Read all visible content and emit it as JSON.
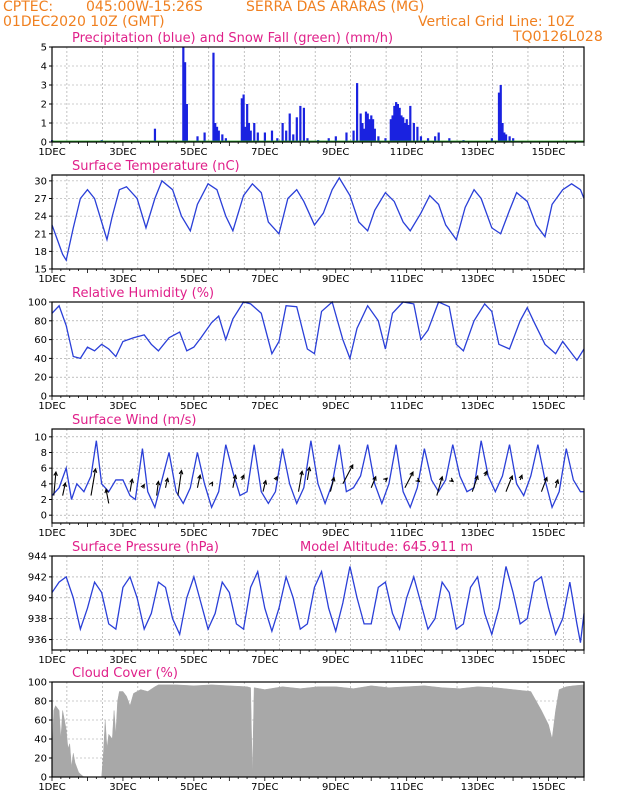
{
  "header": {
    "source": "CPTEC:",
    "coords": "045:00W-15:26S",
    "station": "SERRA DAS ARARAS (MG)",
    "run": "01DEC2020 10Z (GMT)",
    "grid_note": "Vertical Grid Line: 10Z",
    "code": "TQ0126L028"
  },
  "colors": {
    "header": "#f08020",
    "title": "#e0208a",
    "series": "#2a3fd8",
    "snow": "#20a020",
    "cloud": "#a8a8a8",
    "grid": "#9a9a9a"
  },
  "x_ticks": [
    "1DEC",
    "3DEC",
    "5DEC",
    "7DEC",
    "9DEC",
    "11DEC",
    "13DEC",
    "15DEC"
  ],
  "chart_data": [
    {
      "id": "precip",
      "type": "bar",
      "title": "Precipitation (blue) and Snow Fall (green) (mm/h)",
      "ylim": [
        0,
        5
      ],
      "yticks": [
        "0",
        "1",
        "2",
        "3",
        "4",
        "5"
      ],
      "series": [
        {
          "name": "Precipitation",
          "color": "#1a22e0",
          "x_day": [
            1.0,
            2.4,
            3.9,
            4.7,
            4.75,
            4.8,
            5.1,
            5.3,
            5.55,
            5.6,
            5.65,
            5.7,
            5.8,
            5.9,
            6.35,
            6.4,
            6.45,
            6.5,
            6.55,
            6.6,
            6.7,
            6.8,
            7.0,
            7.2,
            7.35,
            7.5,
            7.6,
            7.7,
            7.8,
            7.9,
            8.0,
            8.1,
            8.2,
            8.5,
            8.8,
            9.0,
            9.3,
            9.5,
            9.6,
            9.7,
            9.75,
            9.8,
            9.85,
            9.9,
            9.95,
            10.0,
            10.05,
            10.1,
            10.2,
            10.4,
            10.55,
            10.6,
            10.65,
            10.7,
            10.75,
            10.8,
            10.85,
            10.9,
            10.95,
            11.0,
            11.05,
            11.1,
            11.2,
            11.3,
            11.4,
            11.6,
            11.8,
            11.9,
            12.2,
            12.6,
            13.4,
            13.6,
            13.65,
            13.7,
            13.75,
            13.8,
            13.9,
            14.0
          ],
          "values": [
            0.1,
            0.1,
            0.7,
            5.0,
            4.2,
            2.0,
            0.3,
            0.5,
            4.7,
            1.0,
            0.8,
            0.6,
            0.4,
            0.2,
            2.3,
            2.5,
            0.8,
            2.0,
            1.0,
            0.6,
            1.0,
            0.5,
            0.5,
            0.6,
            0.2,
            1.0,
            0.6,
            1.5,
            0.4,
            1.3,
            1.9,
            1.8,
            0.2,
            0.1,
            0.2,
            0.3,
            0.5,
            0.6,
            3.1,
            1.5,
            1.0,
            0.7,
            1.6,
            1.5,
            1.2,
            1.4,
            1.2,
            0.7,
            0.3,
            0.2,
            1.2,
            1.4,
            1.9,
            2.1,
            2.0,
            1.8,
            1.4,
            1.3,
            1.0,
            1.2,
            0.9,
            1.9,
            1.0,
            0.8,
            0.3,
            0.2,
            0.3,
            0.5,
            0.2,
            0.1,
            0.2,
            2.6,
            3.0,
            1.0,
            0.5,
            0.4,
            0.3,
            0.2
          ]
        },
        {
          "name": "Snow Fall",
          "color": "#20a020",
          "values": [
            0
          ]
        }
      ]
    },
    {
      "id": "temp",
      "type": "line",
      "title": "Surface Temperature (nC)",
      "ylim": [
        15,
        31
      ],
      "yticks": [
        "15",
        "18",
        "21",
        "24",
        "27",
        "30"
      ],
      "x_day": [
        1.0,
        1.15,
        1.3,
        1.4,
        1.6,
        1.8,
        2.0,
        2.2,
        2.4,
        2.55,
        2.7,
        2.9,
        3.1,
        3.4,
        3.65,
        3.9,
        4.1,
        4.4,
        4.65,
        4.9,
        5.1,
        5.4,
        5.65,
        5.9,
        6.1,
        6.4,
        6.65,
        6.9,
        7.1,
        7.4,
        7.65,
        7.9,
        8.1,
        8.4,
        8.65,
        8.9,
        9.1,
        9.4,
        9.65,
        9.9,
        10.1,
        10.4,
        10.65,
        10.9,
        11.1,
        11.4,
        11.65,
        11.9,
        12.1,
        12.4,
        12.65,
        12.9,
        13.1,
        13.4,
        13.65,
        13.9,
        14.1,
        14.4,
        14.65,
        14.9,
        15.1,
        15.4,
        15.65,
        15.9,
        16.0
      ],
      "values": [
        22.5,
        20.0,
        17.5,
        16.5,
        22.0,
        27.0,
        28.5,
        27.0,
        23.0,
        20.0,
        24.0,
        28.5,
        29.0,
        27.0,
        22.0,
        27.0,
        30.0,
        28.5,
        24.0,
        21.5,
        26.0,
        29.5,
        28.5,
        24.0,
        21.5,
        27.5,
        29.5,
        28.0,
        23.0,
        21.0,
        27.0,
        28.5,
        26.5,
        22.5,
        24.5,
        28.5,
        30.5,
        27.5,
        23.0,
        21.5,
        25.0,
        28.0,
        26.5,
        23.0,
        21.5,
        24.5,
        27.5,
        26.0,
        22.5,
        20.0,
        25.5,
        28.5,
        27.0,
        22.0,
        21.0,
        25.0,
        28.0,
        26.5,
        22.5,
        20.5,
        26.0,
        28.5,
        29.5,
        28.5,
        27.0
      ]
    },
    {
      "id": "rh",
      "type": "line",
      "title": "Relative Humidity (%)",
      "ylim": [
        0,
        100
      ],
      "yticks": [
        "0",
        "20",
        "40",
        "60",
        "80",
        "100"
      ],
      "x_day": [
        1.0,
        1.2,
        1.4,
        1.6,
        1.8,
        2.0,
        2.2,
        2.4,
        2.6,
        2.8,
        3.0,
        3.3,
        3.6,
        3.8,
        4.0,
        4.3,
        4.6,
        4.8,
        5.0,
        5.2,
        5.5,
        5.7,
        5.9,
        6.1,
        6.4,
        6.6,
        6.9,
        7.2,
        7.4,
        7.6,
        7.9,
        8.2,
        8.4,
        8.6,
        8.9,
        9.2,
        9.4,
        9.6,
        9.9,
        10.2,
        10.4,
        10.6,
        10.9,
        11.2,
        11.4,
        11.6,
        11.9,
        12.2,
        12.4,
        12.6,
        12.9,
        13.2,
        13.4,
        13.6,
        13.9,
        14.2,
        14.4,
        14.6,
        14.9,
        15.2,
        15.4,
        15.6,
        15.8,
        16.0
      ],
      "values": [
        88,
        96,
        75,
        42,
        40,
        52,
        48,
        55,
        50,
        42,
        58,
        62,
        65,
        55,
        48,
        62,
        68,
        48,
        52,
        62,
        78,
        85,
        60,
        82,
        100,
        98,
        88,
        45,
        58,
        96,
        95,
        50,
        45,
        90,
        100,
        60,
        40,
        72,
        96,
        80,
        50,
        88,
        100,
        98,
        60,
        70,
        100,
        95,
        55,
        48,
        80,
        98,
        90,
        55,
        50,
        80,
        94,
        78,
        55,
        45,
        58,
        48,
        38,
        50
      ]
    },
    {
      "id": "wind",
      "type": "line",
      "title": "Surface Wind (m/s)",
      "ylim": [
        -1,
        11
      ],
      "yticks": [
        "0",
        "2",
        "4",
        "6",
        "8",
        "10"
      ],
      "x_day": [
        1.0,
        1.2,
        1.4,
        1.55,
        1.7,
        1.9,
        2.1,
        2.25,
        2.4,
        2.6,
        2.8,
        3.0,
        3.2,
        3.35,
        3.55,
        3.7,
        3.9,
        4.1,
        4.3,
        4.5,
        4.7,
        4.9,
        5.1,
        5.3,
        5.5,
        5.7,
        5.9,
        6.1,
        6.3,
        6.5,
        6.7,
        6.9,
        7.1,
        7.3,
        7.5,
        7.7,
        7.9,
        8.1,
        8.3,
        8.5,
        8.7,
        8.9,
        9.1,
        9.3,
        9.5,
        9.7,
        9.9,
        10.1,
        10.3,
        10.5,
        10.7,
        10.9,
        11.1,
        11.3,
        11.5,
        11.7,
        11.9,
        12.1,
        12.3,
        12.5,
        12.7,
        12.9,
        13.1,
        13.3,
        13.5,
        13.7,
        13.9,
        14.1,
        14.3,
        14.5,
        14.7,
        14.9,
        15.1,
        15.3,
        15.5,
        15.7,
        15.9,
        16.0
      ],
      "values": [
        2.5,
        3.5,
        6.0,
        2.0,
        4.0,
        3.0,
        5.0,
        9.5,
        4.0,
        3.0,
        4.5,
        4.5,
        2.5,
        2.0,
        8.5,
        3.0,
        1.0,
        4.5,
        8.0,
        3.0,
        1.5,
        3.5,
        8.0,
        4.0,
        1.0,
        3.0,
        9.0,
        5.5,
        2.5,
        3.0,
        9.0,
        3.0,
        1.5,
        3.0,
        8.5,
        4.0,
        1.5,
        3.5,
        9.5,
        4.0,
        1.5,
        4.0,
        9.0,
        3.0,
        3.5,
        5.0,
        9.0,
        4.0,
        1.5,
        4.0,
        9.0,
        3.0,
        1.0,
        3.5,
        8.5,
        4.5,
        3.0,
        4.5,
        9.0,
        5.0,
        3.0,
        3.5,
        9.5,
        5.0,
        3.0,
        5.0,
        9.0,
        4.0,
        2.5,
        5.0,
        9.0,
        4.5,
        1.0,
        3.0,
        8.5,
        4.5,
        3.0,
        3.0
      ],
      "vectors": [
        {
          "x_day": 1.05,
          "y": 2.5,
          "dx": 0.12,
          "dy": 1.5
        },
        {
          "x_day": 1.3,
          "y": 2.5,
          "dx": 0.15,
          "dy": 0.8
        },
        {
          "x_day": 2.1,
          "y": 2.5,
          "dx": 0.25,
          "dy": 1.7
        },
        {
          "x_day": 2.6,
          "y": 1.5,
          "dx": -0.15,
          "dy": 0.9
        },
        {
          "x_day": 3.2,
          "y": 3.0,
          "dx": 0.12,
          "dy": 0.8
        },
        {
          "x_day": 3.55,
          "y": 3.5,
          "dx": 0.1,
          "dy": 0.2
        },
        {
          "x_day": 3.95,
          "y": 2.5,
          "dx": 0.1,
          "dy": 0.9
        },
        {
          "x_day": 4.2,
          "y": 3.5,
          "dx": 0.12,
          "dy": 0.6
        },
        {
          "x_day": 4.55,
          "y": 2.5,
          "dx": 0.2,
          "dy": 1.6
        },
        {
          "x_day": 5.1,
          "y": 3.5,
          "dx": 0.15,
          "dy": 0.8
        },
        {
          "x_day": 5.5,
          "y": 4.0,
          "dx": 0.05,
          "dy": 0.1
        },
        {
          "x_day": 6.1,
          "y": 3.5,
          "dx": 0.15,
          "dy": 0.8
        },
        {
          "x_day": 6.35,
          "y": 4.5,
          "dx": 0.12,
          "dy": 0.3
        },
        {
          "x_day": 6.95,
          "y": 3.0,
          "dx": 0.15,
          "dy": 0.7
        },
        {
          "x_day": 7.3,
          "y": 4.5,
          "dx": 0.1,
          "dy": 0.2
        },
        {
          "x_day": 7.95,
          "y": 3.0,
          "dx": 0.2,
          "dy": 1.3
        },
        {
          "x_day": 8.2,
          "y": 4.5,
          "dx": 0.12,
          "dy": 0.8
        },
        {
          "x_day": 8.85,
          "y": 3.0,
          "dx": 0.2,
          "dy": 0.9
        },
        {
          "x_day": 9.2,
          "y": 4.0,
          "dx": 0.55,
          "dy": 1.2
        },
        {
          "x_day": 10.0,
          "y": 3.5,
          "dx": 0.25,
          "dy": 0.7
        },
        {
          "x_day": 10.4,
          "y": 4.5,
          "dx": 0.1,
          "dy": 0.1
        },
        {
          "x_day": 10.95,
          "y": 3.5,
          "dx": 0.45,
          "dy": 1.0
        },
        {
          "x_day": 11.3,
          "y": 4.5,
          "dx": 0.12,
          "dy": -0.1
        },
        {
          "x_day": 11.85,
          "y": 2.5,
          "dx": 0.3,
          "dy": 1.2
        },
        {
          "x_day": 12.25,
          "y": 4.5,
          "dx": 0.12,
          "dy": -0.1
        },
        {
          "x_day": 12.85,
          "y": 3.0,
          "dx": 0.3,
          "dy": 1.0
        },
        {
          "x_day": 13.2,
          "y": 5.0,
          "dx": 0.12,
          "dy": 0.3
        },
        {
          "x_day": 13.8,
          "y": 3.0,
          "dx": 0.35,
          "dy": 1.0
        },
        {
          "x_day": 14.2,
          "y": 4.5,
          "dx": 0.1,
          "dy": 0.3
        },
        {
          "x_day": 14.8,
          "y": 3.0,
          "dx": 0.3,
          "dy": 0.9
        },
        {
          "x_day": 15.2,
          "y": 3.5,
          "dx": 0.12,
          "dy": 0.5
        }
      ]
    },
    {
      "id": "pres",
      "type": "line",
      "title": "Surface Pressure (hPa)",
      "subtitle": "Model Altitude: 645.911 m",
      "ylim": [
        935,
        944
      ],
      "yticks": [
        "936",
        "938",
        "940",
        "942",
        "944"
      ],
      "x_day": [
        1.0,
        1.2,
        1.4,
        1.6,
        1.8,
        2.0,
        2.2,
        2.4,
        2.6,
        2.8,
        3.0,
        3.2,
        3.4,
        3.6,
        3.8,
        4.0,
        4.2,
        4.4,
        4.6,
        4.8,
        5.0,
        5.2,
        5.4,
        5.6,
        5.8,
        6.0,
        6.2,
        6.4,
        6.6,
        6.8,
        7.0,
        7.2,
        7.4,
        7.6,
        7.8,
        8.0,
        8.2,
        8.4,
        8.6,
        8.8,
        9.0,
        9.2,
        9.4,
        9.6,
        9.8,
        10.0,
        10.2,
        10.4,
        10.6,
        10.8,
        11.0,
        11.2,
        11.4,
        11.6,
        11.8,
        12.0,
        12.2,
        12.4,
        12.6,
        12.8,
        13.0,
        13.2,
        13.4,
        13.6,
        13.8,
        14.0,
        14.2,
        14.4,
        14.6,
        14.8,
        15.0,
        15.2,
        15.4,
        15.6,
        15.8,
        15.9,
        16.0
      ],
      "values": [
        940.5,
        941.5,
        942.0,
        940.0,
        937.0,
        939.0,
        941.5,
        940.5,
        937.5,
        937.0,
        941.0,
        942.0,
        940.0,
        937.0,
        938.5,
        941.5,
        941.0,
        938.0,
        936.5,
        940.0,
        942.0,
        939.5,
        937.0,
        938.5,
        941.5,
        940.5,
        937.5,
        937.0,
        941.0,
        942.5,
        939.0,
        936.8,
        939.0,
        942.0,
        940.0,
        937.0,
        937.5,
        941.0,
        942.5,
        939.0,
        936.8,
        939.5,
        943.0,
        940.0,
        937.5,
        937.5,
        941.0,
        941.5,
        938.5,
        937.0,
        940.0,
        942.0,
        939.5,
        937.0,
        938.0,
        941.5,
        940.5,
        937.0,
        937.5,
        941.0,
        942.0,
        938.5,
        936.5,
        939.0,
        943.0,
        940.5,
        937.5,
        938.0,
        941.5,
        942.0,
        939.0,
        936.5,
        938.0,
        941.5,
        937.5,
        935.7,
        938.5
      ]
    },
    {
      "id": "cloud",
      "type": "area",
      "title": "Cloud Cover (%)",
      "ylim": [
        0,
        100
      ],
      "yticks": [
        "0",
        "20",
        "40",
        "60",
        "80",
        "100"
      ],
      "x_day": [
        1.0,
        1.05,
        1.1,
        1.2,
        1.25,
        1.3,
        1.35,
        1.4,
        1.45,
        1.5,
        1.55,
        1.6,
        1.65,
        1.7,
        1.75,
        1.8,
        1.9,
        2.0,
        2.2,
        2.4,
        2.45,
        2.5,
        2.55,
        2.6,
        2.7,
        2.75,
        2.8,
        2.85,
        2.9,
        3.0,
        3.1,
        3.2,
        3.3,
        3.5,
        3.7,
        3.9,
        4.0,
        4.5,
        5.0,
        5.5,
        6.0,
        6.5,
        6.6,
        6.65,
        6.7,
        7.0,
        7.5,
        8.0,
        8.5,
        9.0,
        9.5,
        10.0,
        10.5,
        11.0,
        11.5,
        12.0,
        12.5,
        13.0,
        13.5,
        14.0,
        14.5,
        14.8,
        15.0,
        15.1,
        15.2,
        15.3,
        15.5,
        15.7,
        16.0
      ],
      "values": [
        15,
        70,
        75,
        70,
        40,
        70,
        60,
        50,
        30,
        35,
        10,
        25,
        15,
        10,
        5,
        3,
        0,
        0,
        0,
        0,
        25,
        60,
        30,
        45,
        40,
        70,
        45,
        80,
        90,
        90,
        85,
        75,
        88,
        92,
        90,
        95,
        97,
        97,
        96,
        97,
        96,
        95,
        94,
        0,
        94,
        92,
        95,
        93,
        95,
        95,
        93,
        96,
        94,
        95,
        96,
        94,
        93,
        95,
        94,
        92,
        90,
        70,
        55,
        40,
        70,
        92,
        95,
        96,
        97
      ]
    }
  ]
}
